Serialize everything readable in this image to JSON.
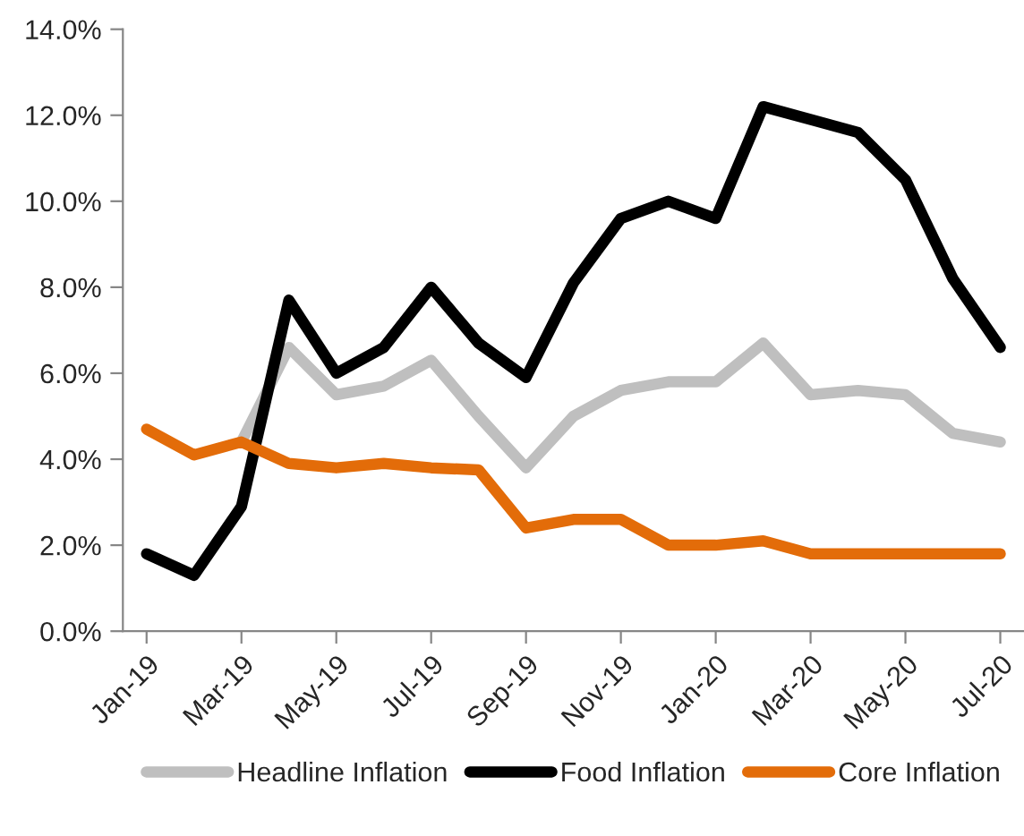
{
  "chart_data": {
    "type": "line",
    "categories": [
      "Jan-19",
      null,
      "Mar-19",
      null,
      "May-19",
      null,
      "Jul-19",
      null,
      "Sep-19",
      null,
      "Nov-19",
      null,
      "Jan-20",
      null,
      "Mar-20",
      null,
      "May-20",
      null,
      "Jul-20"
    ],
    "series": [
      {
        "name": "Headline Inflation",
        "color": "#bfbfbf",
        "values": [
          null,
          null,
          4.4,
          6.6,
          5.5,
          5.7,
          6.3,
          5.0,
          3.8,
          5.0,
          5.6,
          5.8,
          5.8,
          6.7,
          5.5,
          5.6,
          5.5,
          4.6,
          4.4
        ]
      },
      {
        "name": "Food Inflation",
        "color": "#000000",
        "values": [
          1.8,
          1.3,
          2.9,
          7.7,
          6.0,
          6.6,
          8.0,
          6.7,
          5.9,
          8.1,
          9.6,
          10.0,
          9.6,
          12.2,
          11.9,
          11.6,
          10.5,
          8.2,
          6.6
        ]
      },
      {
        "name": "Core Inflation",
        "color": "#e36c09",
        "values": [
          4.7,
          4.1,
          4.4,
          3.9,
          3.8,
          3.9,
          3.8,
          3.75,
          2.4,
          2.6,
          2.6,
          2.0,
          2.0,
          2.1,
          1.8,
          1.8,
          1.8,
          1.8,
          1.8
        ]
      }
    ],
    "ylim": [
      0,
      14
    ],
    "yticks": [
      {
        "value": 0,
        "label": "0.0%"
      },
      {
        "value": 2,
        "label": "2.0%"
      },
      {
        "value": 4,
        "label": "4.0%"
      },
      {
        "value": 6,
        "label": "6.0%"
      },
      {
        "value": 8,
        "label": "8.0%"
      },
      {
        "value": 10,
        "label": "10.0%"
      },
      {
        "value": 12,
        "label": "12.0%"
      },
      {
        "value": 14,
        "label": "14.0%"
      }
    ],
    "grid": false,
    "legend": "bottom",
    "marker": "none",
    "line_style": "solid"
  }
}
